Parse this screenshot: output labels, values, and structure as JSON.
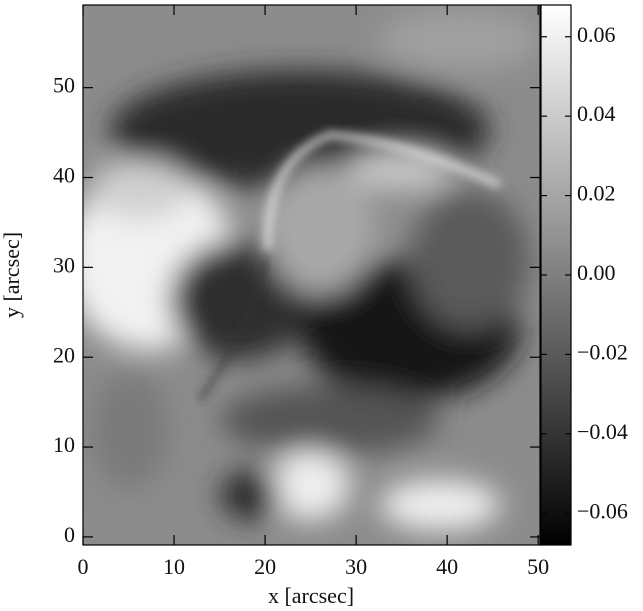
{
  "chart_data": {
    "type": "heatmap",
    "x_label": "x [arcsec]",
    "y_label": "y [arcsec]",
    "xlim": [
      0,
      50.2
    ],
    "xticks": [
      0,
      10,
      20,
      30,
      40,
      50
    ],
    "ylim": [
      -0.9,
      59.2
    ],
    "yticks": [
      0,
      10,
      20,
      30,
      40,
      50
    ],
    "colorbar": {
      "clim": [
        -0.068,
        0.068
      ],
      "colors": [
        "#000000",
        "#ffffff"
      ],
      "ticks": [
        {
          "value": -0.06,
          "label": "−0.06"
        },
        {
          "value": -0.04,
          "label": "−0.04"
        },
        {
          "value": -0.02,
          "label": "−0.02"
        },
        {
          "value": 0,
          "label": "0.00"
        },
        0.02,
        0.04,
        0.06
      ]
    }
  }
}
